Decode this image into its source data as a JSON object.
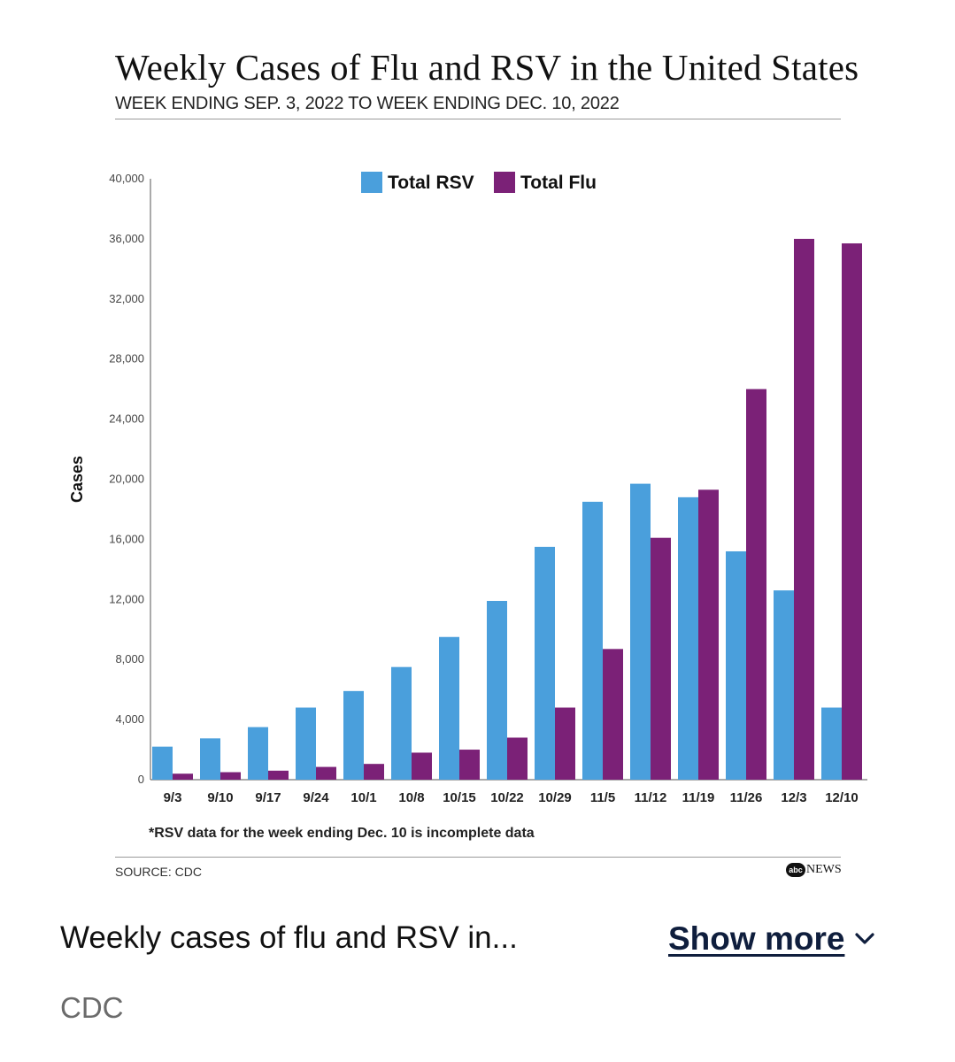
{
  "chart_data": {
    "type": "bar",
    "title": "Weekly Cases of Flu and RSV in the United States",
    "subtitle": "WEEK ENDING SEP. 3, 2022 TO WEEK ENDING DEC. 10, 2022",
    "xlabel": "",
    "ylabel": "Cases",
    "ylim": [
      0,
      40000
    ],
    "yticks": [
      "0",
      "4,000",
      "8,000",
      "12,000",
      "16,000",
      "20,000",
      "24,000",
      "28,000",
      "32,000",
      "36,000",
      "40,000"
    ],
    "grid": false,
    "legend_position": "top",
    "categories": [
      "9/3",
      "9/10",
      "9/17",
      "9/24",
      "10/1",
      "10/8",
      "10/15",
      "10/22",
      "10/29",
      "11/5",
      "11/12",
      "11/19",
      "11/26",
      "12/3",
      "12/10"
    ],
    "series": [
      {
        "name": "Total RSV",
        "color": "#4a9fdc",
        "values": [
          2200,
          2750,
          3500,
          4800,
          5900,
          7500,
          9500,
          11900,
          15500,
          18500,
          19700,
          18800,
          15200,
          12600,
          4800
        ]
      },
      {
        "name": "Total Flu",
        "color": "#7b2177",
        "values": [
          400,
          500,
          600,
          850,
          1050,
          1800,
          2000,
          2800,
          4800,
          8700,
          16100,
          19300,
          26000,
          36000,
          35700
        ]
      }
    ],
    "footnote": "*RSV data for the week ending Dec. 10 is incomplete data",
    "source": "SOURCE: CDC",
    "logo_circle": "abc",
    "logo_text": "NEWS"
  },
  "caption": {
    "text": "Weekly cases of flu and RSV in...",
    "show_more_label": "Show more",
    "chevron_icon": "chevron-down-icon",
    "credit": "CDC"
  }
}
